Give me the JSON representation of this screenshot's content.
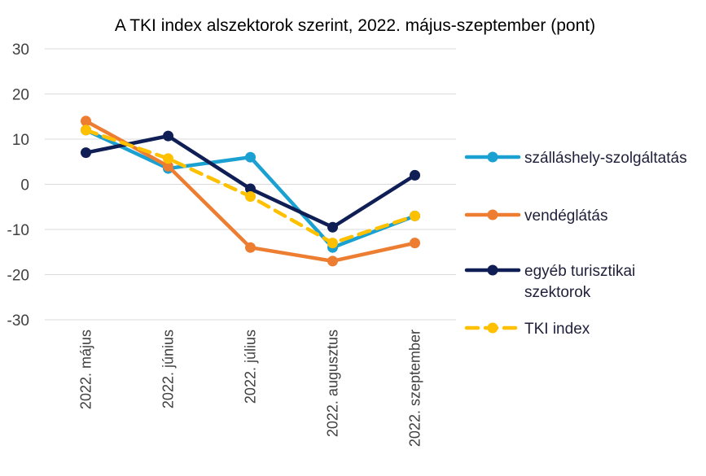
{
  "chart_data": {
    "type": "line",
    "title": "A TKI index alszektorok szerint, 2022. május-szeptember (pont)",
    "xlabel": "",
    "ylabel": "",
    "categories": [
      "2022. május",
      "2022. június",
      "2022. július",
      "2022. augusztus",
      "2022. szeptember"
    ],
    "ylim": [
      -30,
      30
    ],
    "yticks": [
      "30",
      "20",
      "10",
      "0",
      "-10",
      "-20",
      "-30"
    ],
    "grid": true,
    "legend_position": "right",
    "series": [
      {
        "name": "szálláshely-szolgáltatás",
        "color": "#1ba1d1",
        "dashed": false,
        "values": [
          12,
          3.5,
          6,
          -14,
          -7
        ]
      },
      {
        "name": "vendéglátás",
        "color": "#ed7d31",
        "dashed": false,
        "values": [
          14,
          4,
          -14,
          -17,
          -13
        ]
      },
      {
        "name": "egyéb turisztikai szektorok",
        "legend_lines": [
          "egyéb turisztikai",
          "szektorok"
        ],
        "color": "#0f1f56",
        "dashed": false,
        "values": [
          7,
          10.7,
          -1,
          -9.5,
          2
        ]
      },
      {
        "name": "TKI index",
        "color": "#ffc000",
        "dashed": true,
        "values": [
          12,
          5.7,
          -2.7,
          -13,
          -7
        ]
      }
    ]
  }
}
